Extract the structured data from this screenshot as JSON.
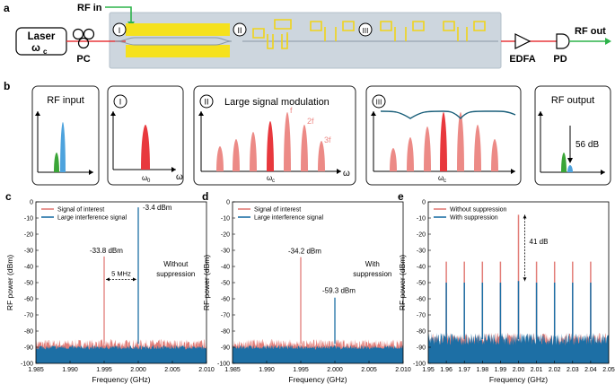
{
  "panel_labels": {
    "a": "a",
    "b": "b",
    "c": "c",
    "d": "d",
    "e": "e"
  },
  "panel_a": {
    "laser_label": "Laser",
    "laser_sub": "ω",
    "laser_sub_index": "c",
    "pc_label": "PC",
    "rf_in_label": "RF in",
    "stage_labels": [
      "I",
      "II",
      "III"
    ],
    "edfa_label": "EDFA",
    "pd_label": "PD",
    "rf_out_label": "RF out",
    "colors": {
      "fiber": "#e8383d",
      "rf": "#2db34a",
      "electrode": "#f5e11d",
      "chip": "#c9d3dc"
    }
  },
  "panel_b": {
    "box1_title": "RF input",
    "box2_stage": "I",
    "box2_axis": "ω",
    "box2_tick": "ω",
    "box2_tick_index": "0",
    "box3_stage": "II",
    "box3_title": "Large signal modulation",
    "box3_axis": "ω",
    "box3_tick": "ω",
    "box3_tick_index": "c",
    "box3_harmonics": [
      "f",
      "2f",
      "3f"
    ],
    "box4_stage": "III",
    "box4_tick": "ω",
    "box4_tick_index": "c",
    "box5_title": "RF output",
    "box5_annotation": "56 dB",
    "colors": {
      "carrier": "#e8383d",
      "sideband": "#ec8a86",
      "signal": "#3aa537",
      "interferer": "#4ea3dd",
      "filter": "#1a5f7a"
    }
  },
  "chart_data": [
    {
      "type": "line",
      "panel": "c",
      "title": "",
      "xlabel": "Frequency (GHz)",
      "ylabel": "RF power (dBm)",
      "xlim": [
        1.985,
        2.01
      ],
      "ylim": [
        -100,
        0
      ],
      "xticks": [
        "1.985",
        "1.990",
        "1.995",
        "2.000",
        "2.005",
        "2.010"
      ],
      "yticks": [
        "0",
        "-10",
        "-20",
        "-30",
        "-40",
        "-50",
        "-60",
        "-70",
        "-80",
        "-90",
        "-100"
      ],
      "legend": [
        "Signal of interest",
        "Large interference signal"
      ],
      "noise_floor": -88,
      "series": [
        {
          "name": "Signal of interest",
          "color": "#e27d78",
          "peaks": [
            {
              "x": 1.995,
              "y": -33.8
            }
          ]
        },
        {
          "name": "Large interference signal",
          "color": "#1d6fa5",
          "peaks": [
            {
              "x": 2.0,
              "y": -3.4
            }
          ],
          "skirt": true
        }
      ],
      "annotations": [
        "-33.8 dBm",
        "-3.4 dBm",
        "5 MHz",
        "Without",
        "suppression"
      ]
    },
    {
      "type": "line",
      "panel": "d",
      "title": "",
      "xlabel": "Frequency (GHz)",
      "ylabel": "RF power (dBm)",
      "xlim": [
        1.985,
        2.01
      ],
      "ylim": [
        -100,
        0
      ],
      "xticks": [
        "1.985",
        "1.990",
        "1.995",
        "2.000",
        "2.005",
        "2.010"
      ],
      "yticks": [
        "0",
        "-10",
        "-20",
        "-30",
        "-40",
        "-50",
        "-60",
        "-70",
        "-80",
        "-90",
        "-100"
      ],
      "legend": [
        "Signal of interest",
        "Large interference signal"
      ],
      "noise_floor": -88,
      "series": [
        {
          "name": "Signal of interest",
          "color": "#e27d78",
          "peaks": [
            {
              "x": 1.995,
              "y": -34.2
            }
          ]
        },
        {
          "name": "Large interference signal",
          "color": "#1d6fa5",
          "peaks": [
            {
              "x": 2.0,
              "y": -59.3
            }
          ],
          "skirt": true
        }
      ],
      "annotations": [
        "-34.2 dBm",
        "-59.3 dBm",
        "With",
        "suppression"
      ]
    },
    {
      "type": "line",
      "panel": "e",
      "title": "",
      "xlabel": "Frequency (GHz)",
      "ylabel": "RF power (dBm)",
      "xlim": [
        1.95,
        2.05
      ],
      "ylim": [
        -100,
        0
      ],
      "xticks": [
        "1.95",
        "1.96",
        "1.97",
        "1.98",
        "1.99",
        "2.00",
        "2.01",
        "2.02",
        "2.03",
        "2.04",
        "2.05"
      ],
      "yticks": [
        "0",
        "-10",
        "-20",
        "-30",
        "-40",
        "-50",
        "-60",
        "-70",
        "-80",
        "-90",
        "-100"
      ],
      "legend": [
        "Without suppression",
        "With suppression"
      ],
      "noise_floor": -85,
      "series": [
        {
          "name": "Without suppression",
          "color": "#e27d78",
          "peaks": [
            {
              "x": 1.96,
              "y": -37
            },
            {
              "x": 1.97,
              "y": -37
            },
            {
              "x": 1.98,
              "y": -37
            },
            {
              "x": 1.99,
              "y": -37
            },
            {
              "x": 2.0,
              "y": -8
            },
            {
              "x": 2.01,
              "y": -37
            },
            {
              "x": 2.02,
              "y": -37
            },
            {
              "x": 2.03,
              "y": -37
            },
            {
              "x": 2.04,
              "y": -37
            }
          ]
        },
        {
          "name": "With suppression",
          "color": "#1d6fa5",
          "peaks": [
            {
              "x": 1.96,
              "y": -50
            },
            {
              "x": 1.97,
              "y": -50
            },
            {
              "x": 1.98,
              "y": -50
            },
            {
              "x": 1.99,
              "y": -50
            },
            {
              "x": 2.0,
              "y": -49
            },
            {
              "x": 2.01,
              "y": -50
            },
            {
              "x": 2.02,
              "y": -50
            },
            {
              "x": 2.03,
              "y": -50
            },
            {
              "x": 2.04,
              "y": -50
            }
          ]
        }
      ],
      "annotations": [
        "41 dB"
      ]
    }
  ]
}
